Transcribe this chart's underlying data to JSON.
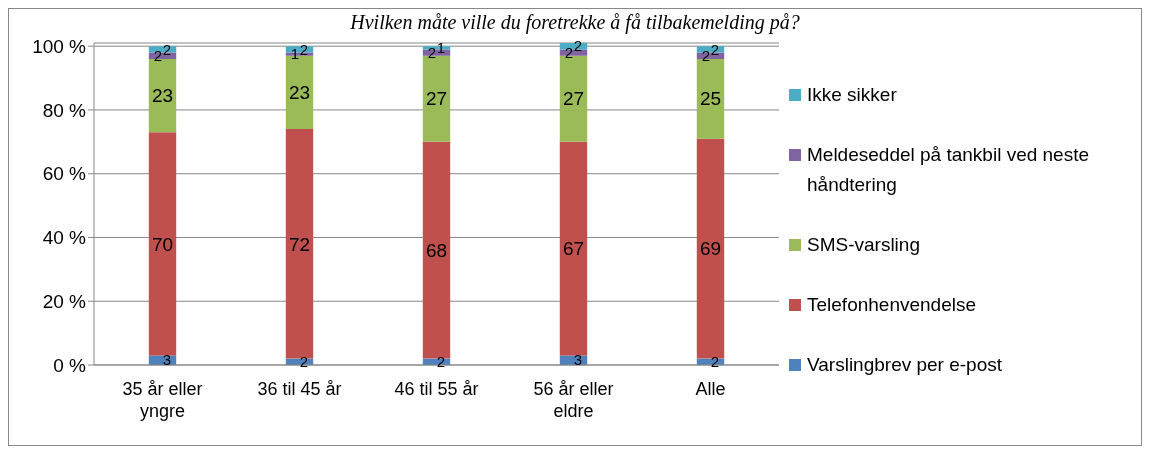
{
  "chart_data": {
    "type": "bar",
    "stacked": true,
    "title": "Hvilken måte ville du foretrekke å få tilbakemelding på?",
    "categories": [
      "35 år eller yngre",
      "36 til 45 år",
      "46 til 55 år",
      "56 år eller eldre",
      "Alle"
    ],
    "series": [
      {
        "name": "Varslingbrev per e-post",
        "color": "#4f81bd",
        "values": [
          3,
          2,
          2,
          3,
          2
        ]
      },
      {
        "name": "Telefonhenvendelse",
        "color": "#c0504d",
        "values": [
          70,
          72,
          68,
          67,
          69
        ]
      },
      {
        "name": "SMS-varsling",
        "color": "#9bbb59",
        "values": [
          23,
          23,
          27,
          27,
          25
        ]
      },
      {
        "name": "Meldeseddel på tankbil ved neste håndtering",
        "color": "#8064a2",
        "values": [
          2,
          1,
          2,
          2,
          2
        ]
      },
      {
        "name": "Ikke sikker",
        "color": "#4bacc6",
        "values": [
          2,
          2,
          1,
          2,
          2
        ]
      }
    ],
    "ylim": [
      0,
      101
    ],
    "yticks": [
      {
        "value": 0,
        "label": "0 %"
      },
      {
        "value": 20,
        "label": "20 %"
      },
      {
        "value": 40,
        "label": "40 %"
      },
      {
        "value": 60,
        "label": "60 %"
      },
      {
        "value": 80,
        "label": "80 %"
      },
      {
        "value": 100,
        "label": "100 %"
      }
    ],
    "grid": "y",
    "legend": "right",
    "data_labels": true
  }
}
